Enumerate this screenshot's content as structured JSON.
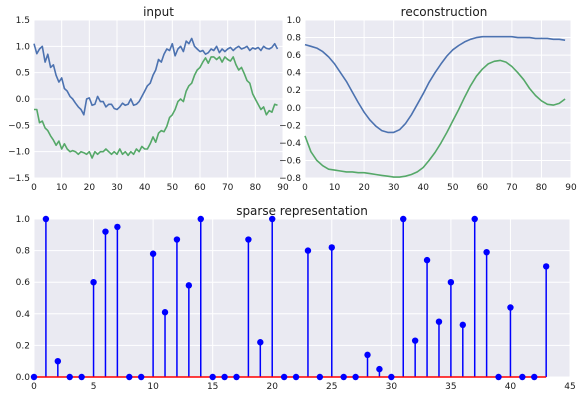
{
  "chart_data": [
    {
      "type": "line",
      "title": "input",
      "xlabel": "",
      "ylabel": "",
      "xlim": [
        0,
        90
      ],
      "ylim": [
        -1.5,
        1.5
      ],
      "xticks": [
        0,
        10,
        20,
        30,
        40,
        50,
        60,
        70,
        80,
        90
      ],
      "xtick_labels": [
        "0",
        "10",
        "20",
        "30",
        "40",
        "50",
        "60",
        "70",
        "80",
        "90"
      ],
      "yticks": [
        -1.5,
        -1.0,
        -0.5,
        0.0,
        0.5,
        1.0,
        1.5
      ],
      "ytick_labels": [
        "−1.5",
        "−1.0",
        "−0.5",
        "0.0",
        "0.5",
        "1.0",
        "1.5"
      ],
      "grid": true,
      "colors": [
        "#4c72b0",
        "#55a868"
      ],
      "series": [
        {
          "x": [
            0,
            1,
            2,
            3,
            4,
            5,
            6,
            7,
            8,
            9,
            10,
            11,
            12,
            13,
            14,
            15,
            16,
            17,
            18,
            19,
            20,
            21,
            22,
            23,
            24,
            25,
            26,
            27,
            28,
            29,
            30,
            31,
            32,
            33,
            34,
            35,
            36,
            37,
            38,
            39,
            40,
            41,
            42,
            43,
            44,
            45,
            46,
            47,
            48,
            49,
            50,
            51,
            52,
            53,
            54,
            55,
            56,
            57,
            58,
            59,
            60,
            61,
            62,
            63,
            64,
            65,
            66,
            67,
            68,
            69,
            70,
            71,
            72,
            73,
            74,
            75,
            76,
            77,
            78,
            79,
            80,
            81,
            82,
            83,
            84,
            85,
            86,
            87,
            88
          ],
          "values": [
            1.05,
            0.86,
            0.95,
            1.0,
            0.7,
            0.85,
            0.6,
            0.65,
            0.45,
            0.32,
            0.4,
            0.2,
            0.15,
            0.05,
            0.0,
            -0.08,
            -0.15,
            -0.2,
            -0.3,
            0.0,
            0.02,
            -0.12,
            -0.1,
            0.05,
            -0.05,
            -0.05,
            -0.15,
            -0.1,
            -0.1,
            -0.18,
            -0.2,
            -0.15,
            -0.08,
            -0.12,
            -0.1,
            0.0,
            -0.12,
            -0.1,
            -0.05,
            0.05,
            0.15,
            0.25,
            0.3,
            0.45,
            0.55,
            0.75,
            0.7,
            0.85,
            0.95,
            0.92,
            1.05,
            0.82,
            0.95,
            1.0,
            0.9,
            1.1,
            1.05,
            1.15,
            1.0,
            0.95,
            0.9,
            0.92,
            0.85,
            0.88,
            0.95,
            0.92,
            1.0,
            0.88,
            0.95,
            0.9,
            0.95,
            0.98,
            0.92,
            0.97,
            1.0,
            0.95,
            0.97,
            1.0,
            0.92,
            0.97,
            0.95,
            0.98,
            0.92,
            1.0,
            0.96,
            0.95,
            0.98,
            1.05,
            0.95
          ]
        },
        {
          "x": [
            0,
            1,
            2,
            3,
            4,
            5,
            6,
            7,
            8,
            9,
            10,
            11,
            12,
            13,
            14,
            15,
            16,
            17,
            18,
            19,
            20,
            21,
            22,
            23,
            24,
            25,
            26,
            27,
            28,
            29,
            30,
            31,
            32,
            33,
            34,
            35,
            36,
            37,
            38,
            39,
            40,
            41,
            42,
            43,
            44,
            45,
            46,
            47,
            48,
            49,
            50,
            51,
            52,
            53,
            54,
            55,
            56,
            57,
            58,
            59,
            60,
            61,
            62,
            63,
            64,
            65,
            66,
            67,
            68,
            69,
            70,
            71,
            72,
            73,
            74,
            75,
            76,
            77,
            78,
            79,
            80,
            81,
            82,
            83,
            84,
            85,
            86,
            87,
            88
          ],
          "values": [
            -0.2,
            -0.2,
            -0.45,
            -0.42,
            -0.55,
            -0.6,
            -0.7,
            -0.78,
            -0.88,
            -0.8,
            -0.95,
            -0.85,
            -0.95,
            -1.0,
            -0.98,
            -1.0,
            -1.05,
            -1.0,
            -1.02,
            -1.05,
            -1.0,
            -1.12,
            -1.0,
            -1.05,
            -1.0,
            -1.0,
            -0.95,
            -1.0,
            -1.05,
            -1.0,
            -1.05,
            -0.95,
            -1.05,
            -1.0,
            -1.07,
            -1.0,
            -1.05,
            -0.95,
            -1.0,
            -0.9,
            -0.95,
            -0.95,
            -0.85,
            -0.72,
            -0.82,
            -0.65,
            -0.6,
            -0.62,
            -0.52,
            -0.35,
            -0.3,
            -0.2,
            -0.05,
            0.0,
            -0.05,
            0.15,
            0.25,
            0.3,
            0.45,
            0.55,
            0.6,
            0.7,
            0.78,
            0.68,
            0.8,
            0.8,
            0.75,
            0.8,
            0.7,
            0.8,
            0.75,
            0.72,
            0.8,
            0.65,
            0.55,
            0.6,
            0.48,
            0.35,
            0.3,
            0.1,
            0.0,
            -0.1,
            -0.2,
            -0.15,
            -0.3,
            -0.22,
            -0.25,
            -0.1,
            -0.12
          ]
        }
      ]
    },
    {
      "type": "line",
      "title": "reconstruction",
      "xlabel": "",
      "ylabel": "",
      "xlim": [
        0,
        90
      ],
      "ylim": [
        -0.8,
        1.0
      ],
      "xticks": [
        0,
        10,
        20,
        30,
        40,
        50,
        60,
        70,
        80,
        90
      ],
      "xtick_labels": [
        "0",
        "10",
        "20",
        "30",
        "40",
        "50",
        "60",
        "70",
        "80",
        "90"
      ],
      "yticks": [
        -0.8,
        -0.6,
        -0.4,
        -0.2,
        0.0,
        0.2,
        0.4,
        0.6,
        0.8,
        1.0
      ],
      "ytick_labels": [
        "−0.8",
        "−0.6",
        "−0.4",
        "−0.2",
        "0.0",
        "0.2",
        "0.4",
        "0.6",
        "0.8",
        "1.0"
      ],
      "grid": true,
      "colors": [
        "#4c72b0",
        "#55a868"
      ],
      "series": [
        {
          "x": [
            0,
            2,
            4,
            6,
            8,
            10,
            12,
            14,
            16,
            18,
            20,
            22,
            24,
            26,
            28,
            30,
            32,
            34,
            36,
            38,
            40,
            42,
            44,
            46,
            48,
            50,
            52,
            54,
            56,
            58,
            60,
            62,
            64,
            66,
            68,
            70,
            72,
            74,
            76,
            78,
            80,
            82,
            84,
            86,
            88
          ],
          "values": [
            0.72,
            0.7,
            0.68,
            0.64,
            0.58,
            0.5,
            0.4,
            0.3,
            0.18,
            0.06,
            -0.05,
            -0.14,
            -0.21,
            -0.26,
            -0.28,
            -0.28,
            -0.25,
            -0.18,
            -0.08,
            0.04,
            0.16,
            0.29,
            0.4,
            0.5,
            0.59,
            0.66,
            0.71,
            0.75,
            0.78,
            0.8,
            0.81,
            0.81,
            0.81,
            0.81,
            0.81,
            0.81,
            0.8,
            0.8,
            0.8,
            0.79,
            0.79,
            0.79,
            0.78,
            0.78,
            0.77
          ]
        },
        {
          "x": [
            0,
            2,
            4,
            6,
            8,
            10,
            12,
            14,
            16,
            18,
            20,
            22,
            24,
            26,
            28,
            30,
            32,
            34,
            36,
            38,
            40,
            42,
            44,
            46,
            48,
            50,
            52,
            54,
            56,
            58,
            60,
            62,
            64,
            66,
            68,
            70,
            72,
            74,
            76,
            78,
            80,
            82,
            84,
            86,
            88
          ],
          "values": [
            -0.32,
            -0.5,
            -0.6,
            -0.66,
            -0.7,
            -0.71,
            -0.72,
            -0.73,
            -0.73,
            -0.74,
            -0.74,
            -0.75,
            -0.76,
            -0.77,
            -0.78,
            -0.79,
            -0.79,
            -0.78,
            -0.76,
            -0.73,
            -0.68,
            -0.6,
            -0.51,
            -0.4,
            -0.28,
            -0.15,
            -0.02,
            0.12,
            0.25,
            0.36,
            0.44,
            0.5,
            0.53,
            0.54,
            0.52,
            0.47,
            0.4,
            0.32,
            0.22,
            0.14,
            0.08,
            0.04,
            0.03,
            0.05,
            0.1
          ]
        }
      ]
    },
    {
      "type": "stem",
      "title": "sparse representation",
      "xlabel": "",
      "ylabel": "",
      "xlim": [
        0,
        45
      ],
      "ylim": [
        0.0,
        1.0
      ],
      "xticks": [
        0,
        5,
        10,
        15,
        20,
        25,
        30,
        35,
        40,
        45
      ],
      "xtick_labels": [
        "0",
        "5",
        "10",
        "15",
        "20",
        "25",
        "30",
        "35",
        "40",
        "45"
      ],
      "yticks": [
        0.0,
        0.2,
        0.4,
        0.6,
        0.8,
        1.0
      ],
      "ytick_labels": [
        "0.0",
        "0.2",
        "0.4",
        "0.6",
        "0.8",
        "1.0"
      ],
      "grid": true,
      "colors": [
        "#0000ff",
        "#ff0000"
      ],
      "x": [
        0,
        1,
        2,
        3,
        4,
        5,
        6,
        7,
        8,
        9,
        10,
        11,
        12,
        13,
        14,
        15,
        16,
        17,
        18,
        19,
        20,
        21,
        22,
        23,
        24,
        25,
        26,
        27,
        28,
        29,
        30,
        31,
        32,
        33,
        34,
        35,
        36,
        37,
        38,
        39,
        40,
        41,
        42,
        43
      ],
      "values": [
        0,
        1.0,
        0.1,
        0,
        0,
        0.6,
        0.92,
        0.95,
        0,
        0,
        0.78,
        0.41,
        0.87,
        0.58,
        1.0,
        0,
        0,
        0,
        0.87,
        0.22,
        1.0,
        0,
        0,
        0.8,
        0,
        0.82,
        0,
        0,
        0.14,
        0.05,
        0,
        1.0,
        0.23,
        0.74,
        0.35,
        0.6,
        0.33,
        1.0,
        0.79,
        0,
        0.44,
        0,
        0,
        0.7
      ]
    }
  ]
}
